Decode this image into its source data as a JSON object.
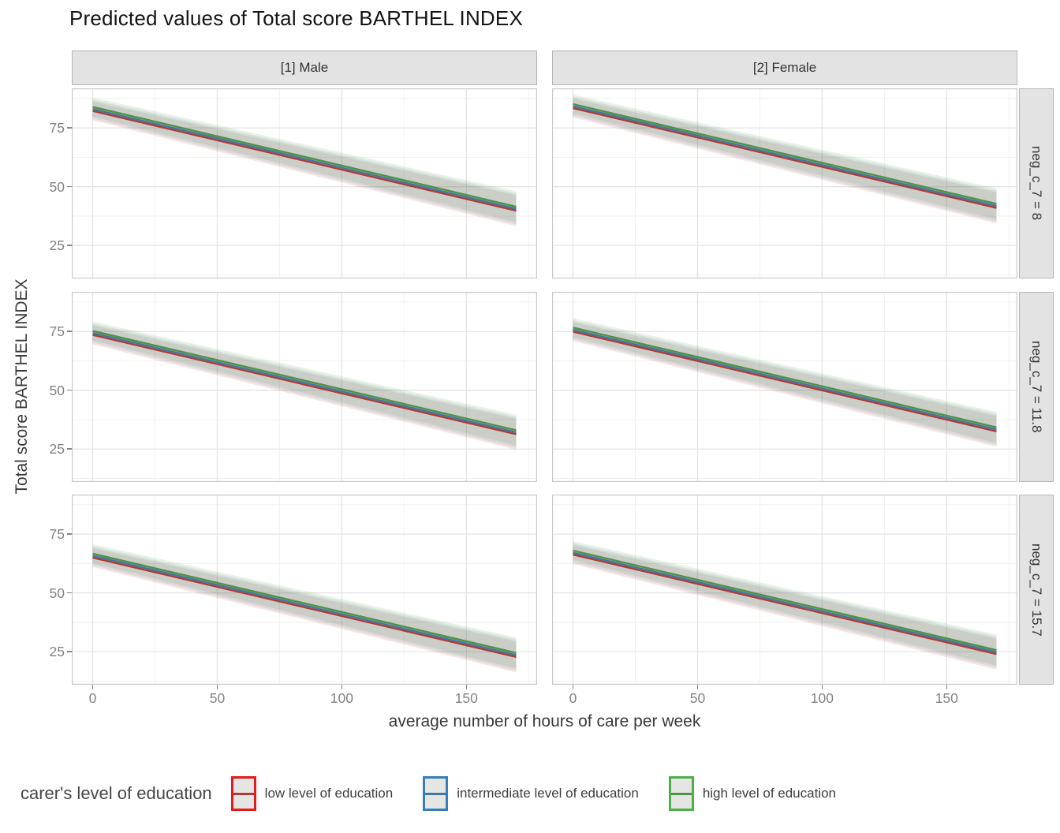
{
  "title": "Predicted values of Total score BARTHEL INDEX",
  "legend": {
    "title": "carer's level of education"
  },
  "chart_data": {
    "type": "line",
    "title": "Predicted values of Total score BARTHEL INDEX",
    "xlabel": "average number of hours of care per week",
    "ylabel": "Total score BARTHEL INDEX",
    "grid": true,
    "legend_position": "bottom",
    "col_facets": [
      "[1] Male",
      "[2] Female"
    ],
    "row_facets": [
      "neg_c_7 = 8",
      "neg_c_7 = 11.8",
      "neg_c_7 = 15.7"
    ],
    "x_ticks": [
      0,
      50,
      100,
      150
    ],
    "x_minor_gridlines": [
      25,
      75,
      125,
      175
    ],
    "y_ticks": [
      75,
      50,
      25
    ],
    "y_minor_gridlines": [
      87.5,
      62.5,
      37.5,
      12.5
    ],
    "xlim": [
      -8.4,
      178.4
    ],
    "ylim": [
      11.0,
      91.8
    ],
    "x_data_range": [
      0,
      170
    ],
    "ribbon_opacity": 0.13,
    "series_meta": [
      {
        "name": "low level of education",
        "line_color": "#b03a36",
        "key_border_color": "#e41a1c"
      },
      {
        "name": "intermediate level of education",
        "line_color": "#48779e",
        "key_border_color": "#377eb8"
      },
      {
        "name": "high level of education",
        "line_color": "#4c9347",
        "key_border_color": "#4daf4a"
      }
    ],
    "panels": [
      {
        "col_facet": "[1] Male",
        "row_facet": "neg_c_7 = 8",
        "series": [
          {
            "name": "low level of education",
            "x": [
              0,
              170
            ],
            "y": [
              82.2,
              39.8
            ],
            "ci_lower": [
              78.2,
              33.2
            ],
            "ci_upper": [
              86.2,
              46.4
            ]
          },
          {
            "name": "intermediate level of education",
            "x": [
              0,
              170
            ],
            "y": [
              83.0,
              40.6
            ],
            "ci_lower": [
              79.0,
              34.0
            ],
            "ci_upper": [
              87.0,
              47.2
            ]
          },
          {
            "name": "high level of education",
            "x": [
              0,
              170
            ],
            "y": [
              83.9,
              41.5
            ],
            "ci_lower": [
              79.9,
              34.9
            ],
            "ci_upper": [
              87.9,
              48.1
            ]
          }
        ]
      },
      {
        "col_facet": "[2] Female",
        "row_facet": "neg_c_7 = 8",
        "series": [
          {
            "name": "low level of education",
            "x": [
              0,
              170
            ],
            "y": [
              83.4,
              41.0
            ],
            "ci_lower": [
              79.4,
              34.4
            ],
            "ci_upper": [
              87.4,
              47.6
            ]
          },
          {
            "name": "intermediate level of education",
            "x": [
              0,
              170
            ],
            "y": [
              84.2,
              41.8
            ],
            "ci_lower": [
              80.2,
              35.2
            ],
            "ci_upper": [
              88.2,
              48.4
            ]
          },
          {
            "name": "high level of education",
            "x": [
              0,
              170
            ],
            "y": [
              85.1,
              42.7
            ],
            "ci_lower": [
              81.1,
              36.1
            ],
            "ci_upper": [
              89.1,
              49.3
            ]
          }
        ]
      },
      {
        "col_facet": "[1] Male",
        "row_facet": "neg_c_7 = 11.8",
        "series": [
          {
            "name": "low level of education",
            "x": [
              0,
              170
            ],
            "y": [
              73.5,
              31.3
            ],
            "ci_lower": [
              69.5,
              24.7
            ],
            "ci_upper": [
              77.5,
              37.9
            ]
          },
          {
            "name": "intermediate level of education",
            "x": [
              0,
              170
            ],
            "y": [
              74.3,
              32.1
            ],
            "ci_lower": [
              70.3,
              25.5
            ],
            "ci_upper": [
              78.3,
              38.7
            ]
          },
          {
            "name": "high level of education",
            "x": [
              0,
              170
            ],
            "y": [
              75.2,
              33.0
            ],
            "ci_lower": [
              71.2,
              26.4
            ],
            "ci_upper": [
              79.2,
              39.6
            ]
          }
        ]
      },
      {
        "col_facet": "[2] Female",
        "row_facet": "neg_c_7 = 11.8",
        "series": [
          {
            "name": "low level of education",
            "x": [
              0,
              170
            ],
            "y": [
              74.9,
              32.5
            ],
            "ci_lower": [
              70.9,
              25.9
            ],
            "ci_upper": [
              78.9,
              39.1
            ]
          },
          {
            "name": "intermediate level of education",
            "x": [
              0,
              170
            ],
            "y": [
              75.7,
              33.3
            ],
            "ci_lower": [
              71.7,
              26.7
            ],
            "ci_upper": [
              79.7,
              39.9
            ]
          },
          {
            "name": "high level of education",
            "x": [
              0,
              170
            ],
            "y": [
              76.6,
              34.2
            ],
            "ci_lower": [
              72.6,
              27.6
            ],
            "ci_upper": [
              80.6,
              40.8
            ]
          }
        ]
      },
      {
        "col_facet": "[1] Male",
        "row_facet": "neg_c_7 = 15.7",
        "series": [
          {
            "name": "low level of education",
            "x": [
              0,
              170
            ],
            "y": [
              65.0,
              22.8
            ],
            "ci_lower": [
              61.0,
              16.2
            ],
            "ci_upper": [
              69.0,
              29.4
            ]
          },
          {
            "name": "intermediate level of education",
            "x": [
              0,
              170
            ],
            "y": [
              65.8,
              23.6
            ],
            "ci_lower": [
              61.8,
              17.0
            ],
            "ci_upper": [
              69.8,
              30.2
            ]
          },
          {
            "name": "high level of education",
            "x": [
              0,
              170
            ],
            "y": [
              66.7,
              24.5
            ],
            "ci_lower": [
              62.7,
              17.9
            ],
            "ci_upper": [
              70.7,
              31.1
            ]
          }
        ]
      },
      {
        "col_facet": "[2] Female",
        "row_facet": "neg_c_7 = 15.7",
        "series": [
          {
            "name": "low level of education",
            "x": [
              0,
              170
            ],
            "y": [
              66.3,
              24.0
            ],
            "ci_lower": [
              62.3,
              17.4
            ],
            "ci_upper": [
              70.3,
              30.6
            ]
          },
          {
            "name": "intermediate level of education",
            "x": [
              0,
              170
            ],
            "y": [
              67.1,
              24.8
            ],
            "ci_lower": [
              63.1,
              18.2
            ],
            "ci_upper": [
              71.1,
              31.4
            ]
          },
          {
            "name": "high level of education",
            "x": [
              0,
              170
            ],
            "y": [
              68.0,
              25.7
            ],
            "ci_lower": [
              64.0,
              19.1
            ],
            "ci_upper": [
              72.0,
              32.3
            ]
          }
        ]
      }
    ]
  }
}
